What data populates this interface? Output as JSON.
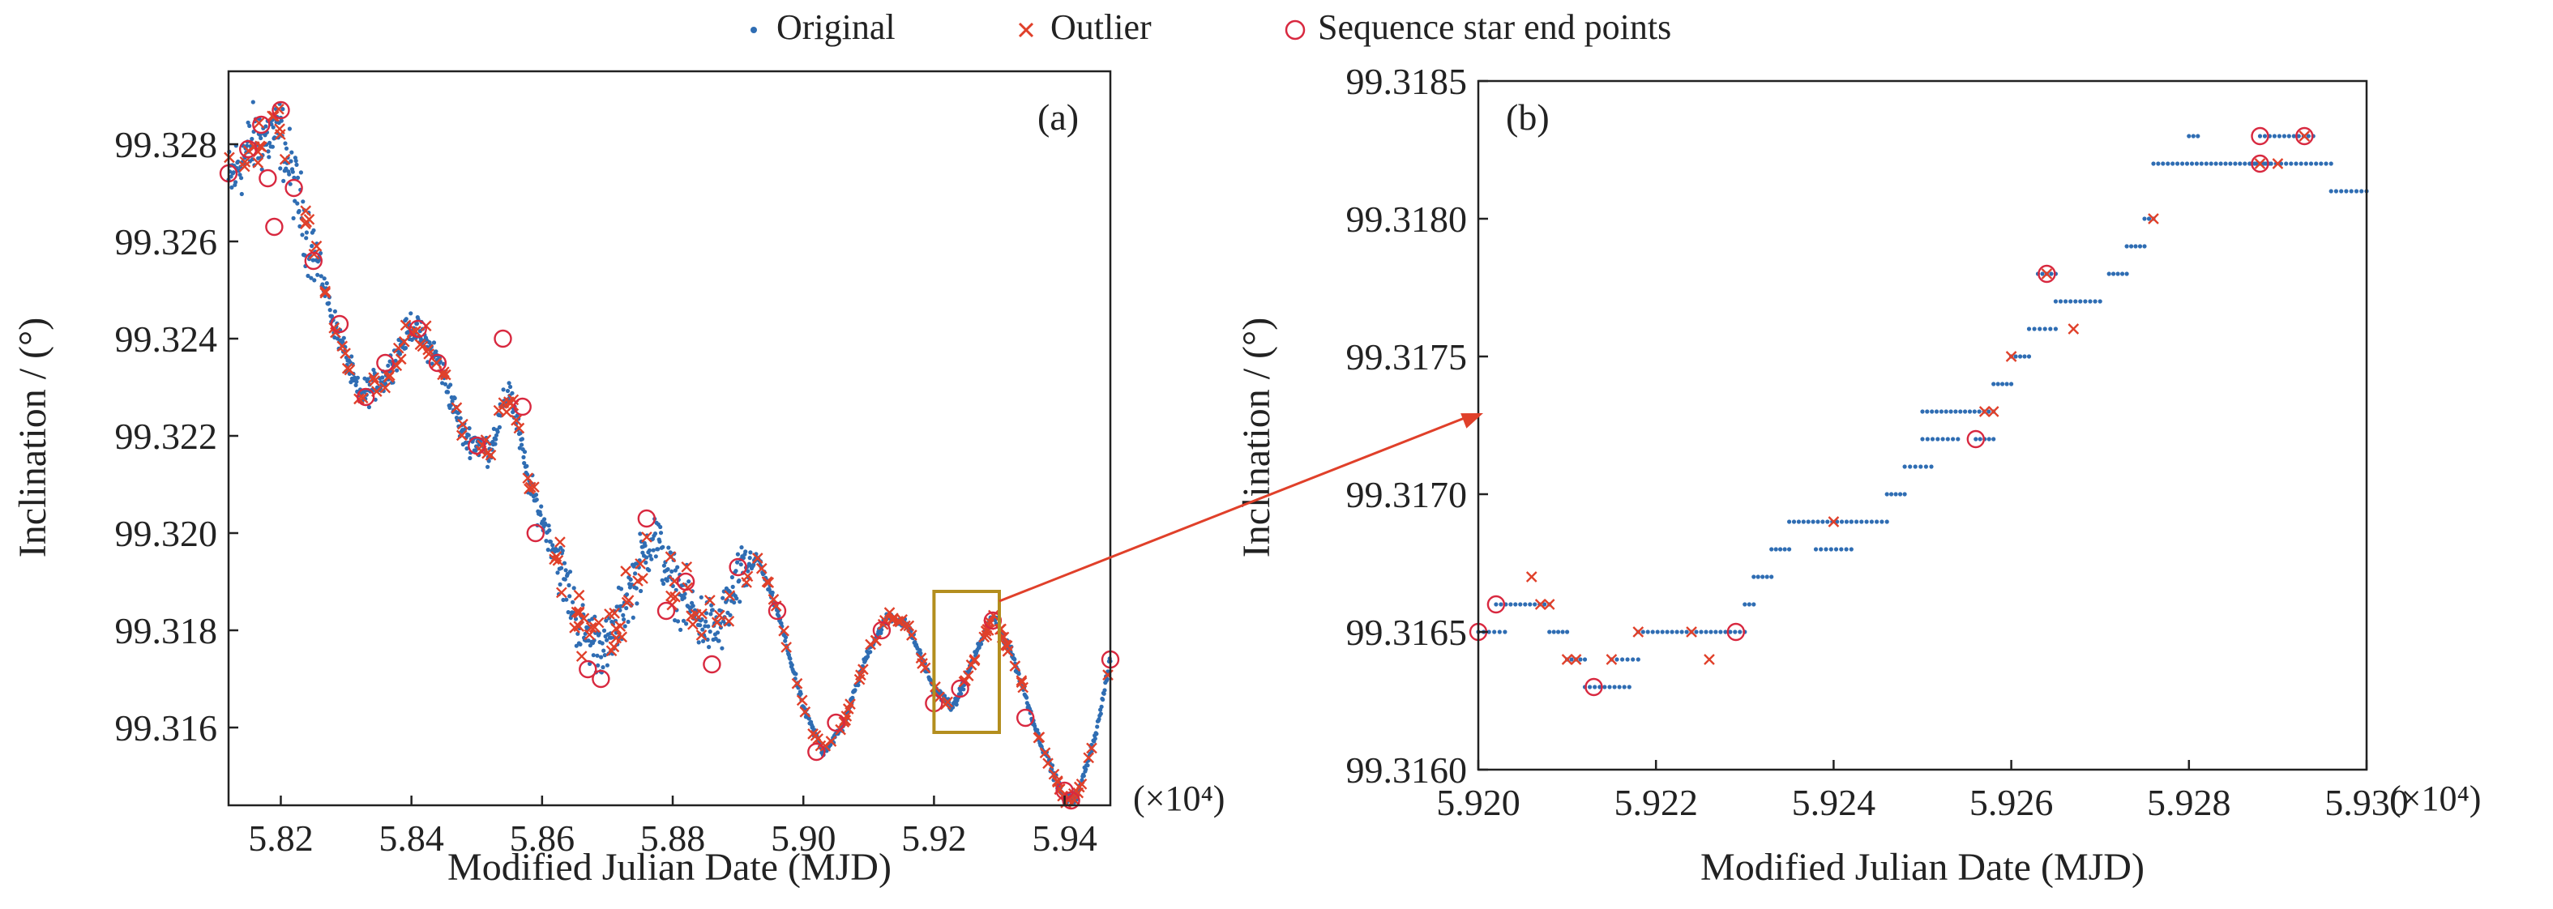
{
  "legend": {
    "items": [
      {
        "label": "Original",
        "marker": "dot",
        "color": "#2f6db3"
      },
      {
        "label": "Outlier",
        "marker": "x",
        "color": "#e0402a"
      },
      {
        "label": "Sequence star end points",
        "marker": "circle",
        "color": "#d8283f"
      }
    ]
  },
  "zoom_box_color": "#b38e1e",
  "arrow_color": "#e0402a",
  "chart_data": [
    {
      "type": "scatter",
      "panel_label": "(a)",
      "xlabel": "Modified Julian Date (MJD)",
      "ylabel": "Inclination / (°)",
      "x_multiplier_label": "(×10⁴)",
      "xlim": [
        5.812,
        5.947
      ],
      "ylim": [
        99.3144,
        99.3295
      ],
      "xticks": [
        5.82,
        5.84,
        5.86,
        5.88,
        5.9,
        5.92,
        5.94
      ],
      "xtick_labels": [
        "5.82",
        "5.84",
        "5.86",
        "5.88",
        "5.90",
        "5.92",
        "5.94"
      ],
      "yticks": [
        99.316,
        99.318,
        99.32,
        99.322,
        99.324,
        99.326,
        99.328
      ],
      "ytick_labels": [
        "99.316",
        "99.318",
        "99.320",
        "99.322",
        "99.324",
        "99.326",
        "99.328"
      ],
      "zoom_region": {
        "x": [
          5.92,
          5.93
        ],
        "y": [
          99.3159,
          99.3188
        ]
      },
      "trend": [
        [
          5.812,
          99.3272
        ],
        [
          5.816,
          99.3281
        ],
        [
          5.82,
          99.3282
        ],
        [
          5.824,
          99.3262
        ],
        [
          5.826,
          99.3254
        ],
        [
          5.828,
          99.3244
        ],
        [
          5.832,
          99.3228
        ],
        [
          5.836,
          99.3232
        ],
        [
          5.84,
          99.3243
        ],
        [
          5.844,
          99.3236
        ],
        [
          5.848,
          99.322
        ],
        [
          5.852,
          99.3217
        ],
        [
          5.855,
          99.323
        ],
        [
          5.858,
          99.321
        ],
        [
          5.862,
          99.3196
        ],
        [
          5.866,
          99.318
        ],
        [
          5.87,
          99.3176
        ],
        [
          5.874,
          99.319
        ],
        [
          5.877,
          99.32
        ],
        [
          5.88,
          99.319
        ],
        [
          5.884,
          99.3182
        ],
        [
          5.887,
          99.318
        ],
        [
          5.89,
          99.319
        ],
        [
          5.893,
          99.3195
        ],
        [
          5.896,
          99.3184
        ],
        [
          5.9,
          99.3164
        ],
        [
          5.903,
          99.3155
        ],
        [
          5.906,
          99.316
        ],
        [
          5.91,
          99.3176
        ],
        [
          5.913,
          99.3183
        ],
        [
          5.916,
          99.3181
        ],
        [
          5.92,
          99.3168
        ],
        [
          5.923,
          99.3164
        ],
        [
          5.926,
          99.3174
        ],
        [
          5.929,
          99.3183
        ],
        [
          5.932,
          99.3175
        ],
        [
          5.936,
          99.3158
        ],
        [
          5.94,
          99.3145
        ],
        [
          5.942,
          99.3146
        ],
        [
          5.945,
          99.316
        ],
        [
          5.947,
          99.3174
        ]
      ],
      "end_points": [
        [
          5.812,
          99.3274
        ],
        [
          5.815,
          99.3279
        ],
        [
          5.817,
          99.3284
        ],
        [
          5.818,
          99.3273
        ],
        [
          5.819,
          99.3263
        ],
        [
          5.82,
          99.3287
        ],
        [
          5.822,
          99.3271
        ],
        [
          5.825,
          99.3256
        ],
        [
          5.829,
          99.3243
        ],
        [
          5.833,
          99.3228
        ],
        [
          5.836,
          99.3235
        ],
        [
          5.841,
          99.3242
        ],
        [
          5.844,
          99.3235
        ],
        [
          5.85,
          99.3218
        ],
        [
          5.854,
          99.324
        ],
        [
          5.857,
          99.3226
        ],
        [
          5.859,
          99.32
        ],
        [
          5.867,
          99.3172
        ],
        [
          5.869,
          99.317
        ],
        [
          5.876,
          99.3203
        ],
        [
          5.879,
          99.3184
        ],
        [
          5.882,
          99.319
        ],
        [
          5.886,
          99.3173
        ],
        [
          5.89,
          99.3193
        ],
        [
          5.896,
          99.3184
        ],
        [
          5.902,
          99.3155
        ],
        [
          5.905,
          99.3161
        ],
        [
          5.912,
          99.318
        ],
        [
          5.92,
          99.3165
        ],
        [
          5.924,
          99.3168
        ],
        [
          5.929,
          99.3182
        ],
        [
          5.934,
          99.3162
        ],
        [
          5.94,
          99.3147
        ],
        [
          5.941,
          99.3145
        ],
        [
          5.947,
          99.3174
        ]
      ]
    },
    {
      "type": "scatter",
      "panel_label": "(b)",
      "xlabel": "Modified Julian Date (MJD)",
      "ylabel": "Inclination / (°)",
      "x_multiplier_label": "(×10⁴)",
      "xlim": [
        5.92,
        5.93
      ],
      "ylim": [
        99.316,
        99.3185
      ],
      "xticks": [
        5.92,
        5.922,
        5.924,
        5.926,
        5.928,
        5.93
      ],
      "xtick_labels": [
        "5.920",
        "5.922",
        "5.924",
        "5.926",
        "5.928",
        "5.930"
      ],
      "yticks": [
        99.316,
        99.3165,
        99.317,
        99.3175,
        99.318,
        99.3185
      ],
      "ytick_labels": [
        "99.3160",
        "99.3165",
        "99.3170",
        "99.3175",
        "99.3180",
        "99.3185"
      ],
      "segments": [
        {
          "x": [
            5.92,
            5.9203
          ],
          "y": 99.3165
        },
        {
          "x": [
            5.9202,
            5.9208
          ],
          "y": 99.3166
        },
        {
          "x": [
            5.9208,
            5.921
          ],
          "y": 99.3165
        },
        {
          "x": [
            5.921,
            5.9212
          ],
          "y": 99.3164
        },
        {
          "x": [
            5.9212,
            5.9217
          ],
          "y": 99.3163
        },
        {
          "x": [
            5.9215,
            5.9218
          ],
          "y": 99.3164
        },
        {
          "x": [
            5.9218,
            5.923
          ],
          "y": 99.3165
        },
        {
          "x": [
            5.923,
            5.9231
          ],
          "y": 99.3166
        },
        {
          "x": [
            5.9231,
            5.9233
          ],
          "y": 99.3167
        },
        {
          "x": [
            5.9233,
            5.9235
          ],
          "y": 99.3168
        },
        {
          "x": [
            5.9235,
            5.9242
          ],
          "y": 99.3169
        },
        {
          "x": [
            5.9238,
            5.9242
          ],
          "y": 99.3168
        },
        {
          "x": [
            5.9242,
            5.9246
          ],
          "y": 99.3169
        },
        {
          "x": [
            5.9246,
            5.9248
          ],
          "y": 99.317
        },
        {
          "x": [
            5.9248,
            5.9251
          ],
          "y": 99.3171
        },
        {
          "x": [
            5.925,
            5.9254
          ],
          "y": 99.3172
        },
        {
          "x": [
            5.925,
            5.9258
          ],
          "y": 99.3173
        },
        {
          "x": [
            5.9256,
            5.9258
          ],
          "y": 99.3172
        },
        {
          "x": [
            5.9258,
            5.926
          ],
          "y": 99.3174
        },
        {
          "x": [
            5.926,
            5.9262
          ],
          "y": 99.3175
        },
        {
          "x": [
            5.9262,
            5.9265
          ],
          "y": 99.3176
        },
        {
          "x": [
            5.9265,
            5.927
          ],
          "y": 99.3177
        },
        {
          "x": [
            5.9263,
            5.9265
          ],
          "y": 99.3178
        },
        {
          "x": [
            5.9271,
            5.9273
          ],
          "y": 99.3178
        },
        {
          "x": [
            5.9273,
            5.9275
          ],
          "y": 99.3179
        },
        {
          "x": [
            5.9275,
            5.9276
          ],
          "y": 99.318
        },
        {
          "x": [
            5.9276,
            5.9289
          ],
          "y": 99.3182
        },
        {
          "x": [
            5.928,
            5.9281
          ],
          "y": 99.3183
        },
        {
          "x": [
            5.9287,
            5.9296
          ],
          "y": 99.3182
        },
        {
          "x": [
            5.9288,
            5.9294
          ],
          "y": 99.3183
        },
        {
          "x": [
            5.9296,
            5.93
          ],
          "y": 99.3181
        }
      ],
      "outliers": [
        [
          5.9206,
          99.3167
        ],
        [
          5.9207,
          99.3166
        ],
        [
          5.9208,
          99.3166
        ],
        [
          5.921,
          99.3164
        ],
        [
          5.9211,
          99.3164
        ],
        [
          5.9215,
          99.3164
        ],
        [
          5.9218,
          99.3165
        ],
        [
          5.9226,
          99.3164
        ],
        [
          5.9224,
          99.3165
        ],
        [
          5.924,
          99.3169
        ],
        [
          5.9257,
          99.3173
        ],
        [
          5.9258,
          99.3173
        ],
        [
          5.926,
          99.3175
        ],
        [
          5.9264,
          99.3178
        ],
        [
          5.9267,
          99.3176
        ],
        [
          5.9276,
          99.318
        ],
        [
          5.9288,
          99.3182
        ],
        [
          5.929,
          99.3182
        ],
        [
          5.9293,
          99.3183
        ]
      ],
      "end_points": [
        [
          5.92,
          99.3165
        ],
        [
          5.9202,
          99.3166
        ],
        [
          5.9213,
          99.3163
        ],
        [
          5.9229,
          99.3165
        ],
        [
          5.9256,
          99.3172
        ],
        [
          5.9264,
          99.3178
        ],
        [
          5.9288,
          99.3182
        ],
        [
          5.9288,
          99.3183
        ],
        [
          5.9293,
          99.3183
        ]
      ]
    }
  ]
}
